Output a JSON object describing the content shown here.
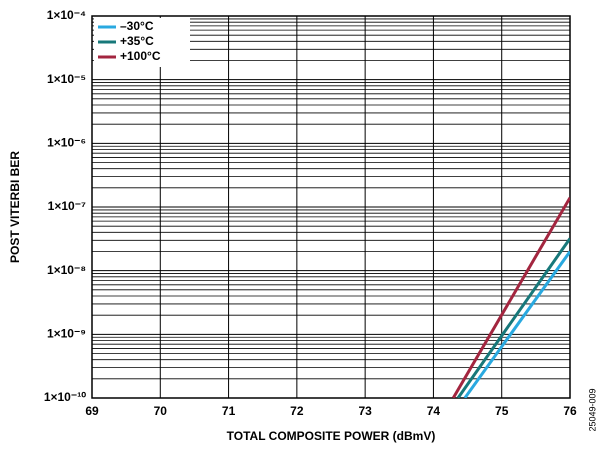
{
  "chart_data": {
    "type": "line",
    "xlabel": "TOTAL COMPOSITE POWER (dBmV)",
    "ylabel": "POST VITERBI BER",
    "figure_id": "25049-009",
    "xlim": [
      69,
      76
    ],
    "xticks": [
      69,
      70,
      71,
      72,
      73,
      74,
      75,
      76
    ],
    "ylim": [
      1e-10,
      0.0001
    ],
    "yticks": [
      {
        "value": 1e-10,
        "label": "1×10⁻¹⁰"
      },
      {
        "value": 1e-09,
        "label": "1×10⁻⁹"
      },
      {
        "value": 1e-08,
        "label": "1×10⁻⁸"
      },
      {
        "value": 1e-07,
        "label": "1×10⁻⁷"
      },
      {
        "value": 1e-06,
        "label": "1×10⁻⁶"
      },
      {
        "value": 1e-05,
        "label": "1×10⁻⁵"
      },
      {
        "value": 0.0001,
        "label": "1×10⁻⁴"
      }
    ],
    "log_y": true,
    "grid": true,
    "minor_grid": true,
    "legend": "upper left",
    "series": [
      {
        "name": "–30°C",
        "color": "#29a9e0",
        "x": [
          74.46,
          76
        ],
        "values": [
          1e-10,
          2e-08
        ]
      },
      {
        "name": "+35°C",
        "color": "#17787a",
        "x": [
          74.36,
          76
        ],
        "values": [
          1e-10,
          3.2e-08
        ]
      },
      {
        "name": "+100°C",
        "color": "#a3253f",
        "x": [
          74.29,
          76
        ],
        "values": [
          1e-10,
          1.4e-07
        ]
      }
    ]
  }
}
